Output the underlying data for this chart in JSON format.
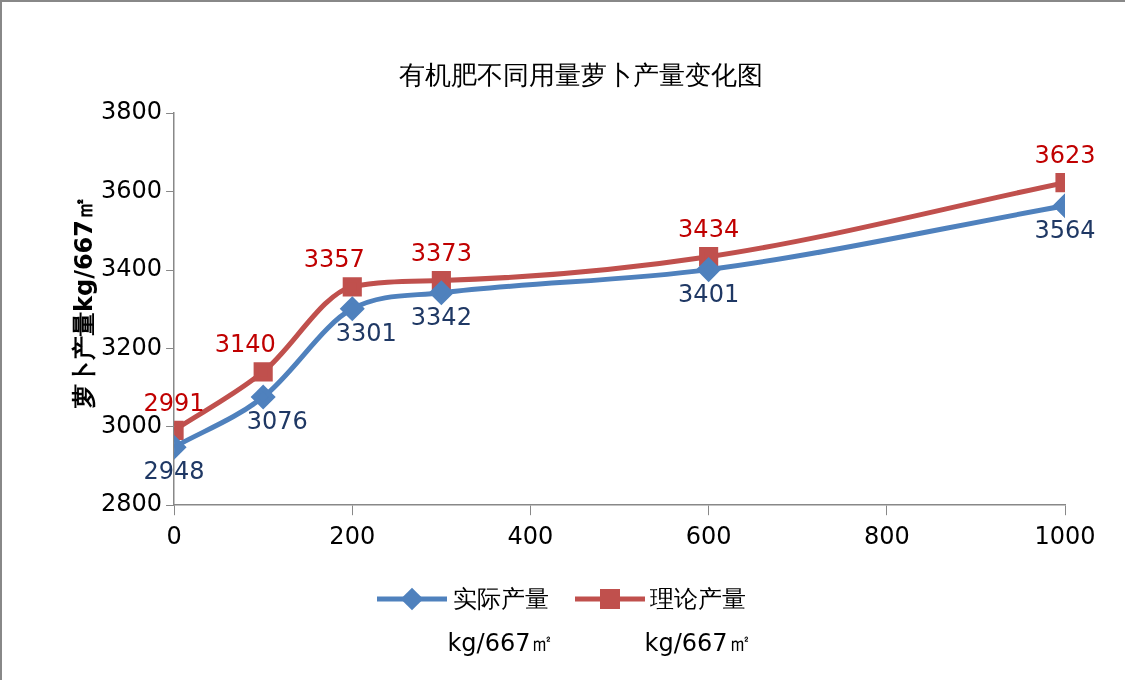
{
  "chart_data": {
    "type": "line",
    "title": "有机肥不同用量萝卜产量变化图",
    "ylabel": "萝卜产量kg/667㎡",
    "x": [
      0,
      100,
      200,
      300,
      600,
      1000
    ],
    "series": [
      {
        "name": "实际产量\nkg/667㎡",
        "color": "#4f81bd",
        "marker": "diamond",
        "values": [
          2948,
          3076,
          3301,
          3342,
          3401,
          3564
        ]
      },
      {
        "name": "理论产量\nkg/667㎡",
        "color": "#c0504d",
        "marker": "square",
        "values": [
          2991,
          3140,
          3357,
          3373,
          3434,
          3623
        ]
      }
    ],
    "xlim": [
      0,
      1000
    ],
    "xticks": [
      0,
      200,
      400,
      600,
      800,
      1000
    ],
    "ylim": [
      2800,
      3800
    ],
    "yticks": [
      2800,
      3000,
      3200,
      3400,
      3600,
      3800
    ],
    "grid": false,
    "legend": "bottom",
    "data_labels": true
  }
}
